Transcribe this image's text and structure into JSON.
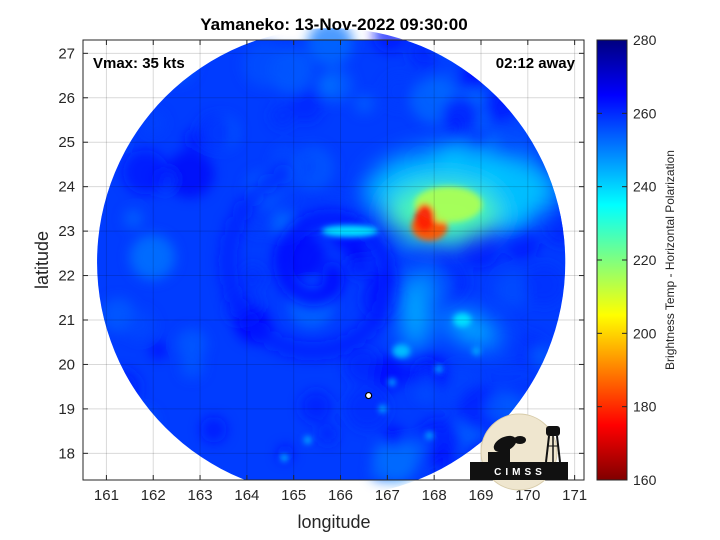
{
  "chart_data": {
    "type": "heatmap",
    "title": "Yamaneko: 13-Nov-2022 09:30:00",
    "xlabel": "longitude",
    "ylabel": "latitude",
    "xlim": [
      160.5,
      171.2
    ],
    "ylim": [
      17.4,
      27.3
    ],
    "xticks": [
      161,
      162,
      163,
      164,
      165,
      166,
      167,
      168,
      169,
      170,
      171
    ],
    "yticks": [
      18,
      19,
      20,
      21,
      22,
      23,
      24,
      25,
      26,
      27
    ],
    "grid": true,
    "annotations": {
      "vmax": "Vmax: 35 kts",
      "time_away": "02:12 away"
    },
    "storm_center": {
      "lon": 166.6,
      "lat": 19.3
    },
    "swath": {
      "center_lon": 165.8,
      "center_lat": 22.3,
      "radius_deg": 5.0
    },
    "colorbar": {
      "label": "Brightness Temp - Horizontal Polarization",
      "range": [
        160,
        280
      ],
      "ticks": [
        160,
        180,
        200,
        220,
        240,
        260,
        280
      ],
      "colormap": "jet"
    },
    "features": [
      {
        "name": "convective core",
        "lon": 167.9,
        "lat": 23.1,
        "tb": 185
      },
      {
        "name": "cloud shield",
        "lon": 168.3,
        "lat": 23.6,
        "tb": 215
      },
      {
        "name": "band 1",
        "lon": 168.6,
        "lat": 21.0,
        "tb": 238
      },
      {
        "name": "band 2",
        "lon": 167.3,
        "lat": 20.3,
        "tb": 242
      }
    ],
    "background_tb": 258
  },
  "logo": {
    "text": "CIMSS"
  }
}
